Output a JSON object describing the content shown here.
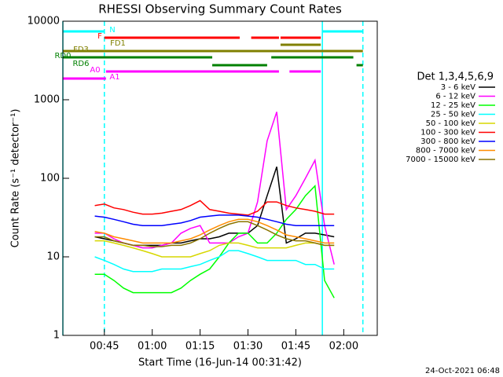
{
  "chart_data": {
    "type": "line",
    "title": "RHESSI Observing Summary Count Rates",
    "x_label": "Start Time (16-Jun-14 00:31:42)",
    "y_label": "Count Rate (s⁻¹ detector⁻¹)",
    "legend_title": "Det 1,3,4,5,6,9",
    "footer": "24-Oct-2021 06:48",
    "log_y": true,
    "xlim": [
      32,
      130.5
    ],
    "ylim": [
      1,
      10000
    ],
    "xticks": [
      {
        "value": 45,
        "label": "00:45"
      },
      {
        "value": 60,
        "label": "01:00"
      },
      {
        "value": 75,
        "label": "01:15"
      },
      {
        "value": 90,
        "label": "01:30"
      },
      {
        "value": 105,
        "label": "01:45"
      },
      {
        "value": 120,
        "label": "02:00"
      }
    ],
    "yticks": [
      1,
      10,
      100,
      1000,
      10000
    ],
    "x": [
      42,
      45,
      48,
      51,
      54,
      57,
      60,
      63,
      66,
      69,
      72,
      75,
      78,
      81,
      84,
      87,
      90,
      93,
      96,
      99,
      102,
      105,
      108,
      111,
      114,
      117
    ],
    "series": [
      {
        "name": "3 - 6 keV",
        "color": "#000000",
        "values": [
          18,
          17,
          16,
          15,
          14,
          14,
          14,
          14,
          15,
          15,
          16,
          17,
          17,
          18,
          20,
          20,
          20,
          25,
          60,
          140,
          15,
          17,
          20,
          20,
          19,
          18
        ]
      },
      {
        "name": "6 - 12 keV",
        "color": "#ff00ff",
        "values": [
          20,
          20,
          17,
          15,
          14,
          13,
          13,
          14,
          15,
          20,
          23,
          25,
          15,
          15,
          15,
          18,
          20,
          50,
          300,
          700,
          40,
          60,
          100,
          170,
          25,
          8
        ]
      },
      {
        "name": "12 - 25 keV",
        "color": "#00ff00",
        "values": [
          6,
          6,
          5,
          4,
          3.5,
          3.5,
          3.5,
          3.5,
          3.5,
          4,
          5,
          6,
          7,
          10,
          15,
          20,
          20,
          15,
          15,
          20,
          30,
          40,
          60,
          80,
          5,
          3
        ]
      },
      {
        "name": "25 - 50 keV",
        "color": "#00ffff",
        "values": [
          10,
          9,
          8,
          7,
          6.5,
          6.5,
          6.5,
          7,
          7,
          7,
          7.5,
          8,
          9,
          10,
          12,
          12,
          11,
          10,
          9,
          9,
          9,
          9,
          8,
          8,
          7,
          7
        ]
      },
      {
        "name": "50 - 100 keV",
        "color": "#d7d700",
        "values": [
          16,
          16,
          15,
          14,
          13,
          12,
          11,
          10,
          10,
          10,
          10,
          11,
          12,
          14,
          15,
          15,
          14,
          13,
          13,
          13,
          13,
          14,
          15,
          15,
          14,
          14
        ]
      },
      {
        "name": "100 - 300 keV",
        "color": "#ff0000",
        "values": [
          45,
          47,
          42,
          40,
          37,
          35,
          35,
          36,
          38,
          40,
          45,
          52,
          40,
          38,
          36,
          35,
          34,
          38,
          50,
          50,
          45,
          42,
          40,
          38,
          35,
          35
        ]
      },
      {
        "name": "300 - 800 keV",
        "color": "#0000ff",
        "values": [
          33,
          32,
          30,
          28,
          26,
          25,
          25,
          25,
          26,
          27,
          29,
          32,
          33,
          34,
          34,
          34,
          33,
          32,
          30,
          28,
          26,
          25,
          25,
          25,
          25,
          25
        ]
      },
      {
        "name": "800 - 7000 keV",
        "color": "#ff8c00",
        "values": [
          21,
          20,
          18,
          17,
          16,
          15,
          15,
          15,
          15,
          16,
          17,
          19,
          22,
          25,
          28,
          30,
          30,
          28,
          25,
          22,
          19,
          18,
          17,
          16,
          15,
          15
        ]
      },
      {
        "name": "7000 - 15000 keV",
        "color": "#8b7500",
        "values": [
          18,
          18,
          16,
          15,
          14,
          14,
          13.5,
          13.5,
          14,
          14,
          15,
          17,
          20,
          23,
          26,
          28,
          28,
          25,
          22,
          19,
          17,
          16,
          16,
          15,
          14,
          14
        ]
      }
    ],
    "flags": [
      {
        "label": "N",
        "color": "#00ffff",
        "segments": [
          [
            32,
            45
          ],
          [
            113.3,
            126
          ]
        ]
      },
      {
        "label": "F",
        "color": "#ff0000",
        "segments": [
          [
            45,
            87.4
          ],
          [
            91,
            99.7
          ],
          [
            100.2,
            112.8
          ]
        ]
      },
      {
        "label": "FD1",
        "color": "#808000",
        "segments": [
          [
            100.2,
            112.8
          ]
        ]
      },
      {
        "label": "FD3",
        "color": "#808000",
        "segments": [
          [
            32,
            126
          ]
        ]
      },
      {
        "label": "RD0",
        "color": "#008000",
        "segments": [
          [
            32,
            78.8
          ],
          [
            97.3,
            123
          ]
        ]
      },
      {
        "label": "RD6",
        "color": "#008000",
        "segments": [
          [
            78.8,
            96
          ],
          [
            124,
            126
          ]
        ]
      },
      {
        "label": "A0",
        "color": "#ff00ff",
        "segments": [
          [
            45.5,
            99.7
          ],
          [
            103,
            112.8
          ]
        ]
      },
      {
        "label": "A1",
        "color": "#ff00ff",
        "segments": [
          [
            32,
            45.5
          ]
        ]
      }
    ],
    "vlines": [
      {
        "x": 32,
        "dash": false
      },
      {
        "x": 45,
        "dash": true
      },
      {
        "x": 113.3,
        "dash": false
      },
      {
        "x": 126,
        "dash": true
      }
    ],
    "vline_color": "#00ffff"
  }
}
